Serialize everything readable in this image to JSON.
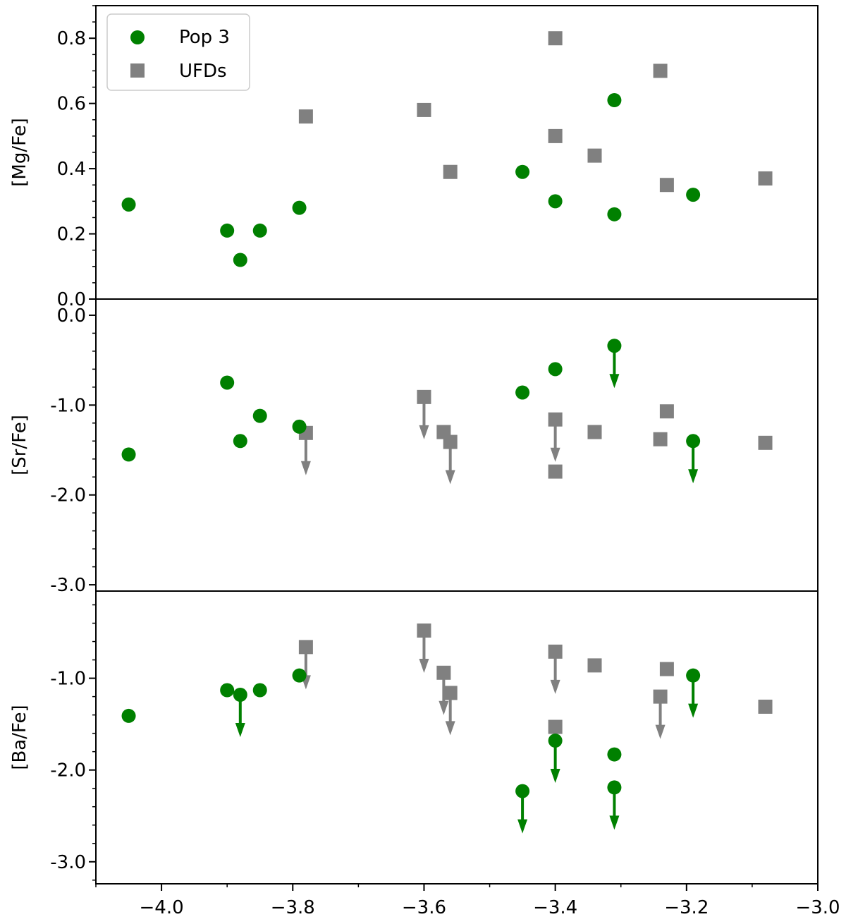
{
  "chart_data": {
    "type": "scatter",
    "layout": "three vertically stacked panels sharing x axis",
    "xlim": [
      -4.1,
      -3.0
    ],
    "x_ticks": [
      -4.0,
      -3.8,
      -3.6,
      -3.4,
      -3.2,
      -3.0
    ],
    "x_tick_labels": [
      "−4.0",
      "−3.8",
      "−3.6",
      "−3.4",
      "−3.2",
      "−3.0"
    ],
    "legend": {
      "placement": "top-left",
      "entries": [
        {
          "label": "Pop 3",
          "marker": "circle",
          "color": "#008000"
        },
        {
          "label": "UFDs",
          "marker": "square",
          "color": "#808080"
        }
      ]
    },
    "upper_limit_marker": "downward arrow",
    "panels": [
      {
        "ylabel": "[Mg/Fe]",
        "ylim": [
          0.0,
          0.9
        ],
        "y_ticks": [
          0.0,
          0.2,
          0.4,
          0.6,
          0.8
        ],
        "y_tick_labels": [
          "0.0",
          "0.2",
          "0.4",
          "0.6",
          "0.8"
        ],
        "series": [
          {
            "name": "Pop 3",
            "points": [
              {
                "x": -4.05,
                "y": 0.29
              },
              {
                "x": -3.9,
                "y": 0.21
              },
              {
                "x": -3.88,
                "y": 0.12
              },
              {
                "x": -3.85,
                "y": 0.21
              },
              {
                "x": -3.79,
                "y": 0.28
              },
              {
                "x": -3.45,
                "y": 0.39
              },
              {
                "x": -3.4,
                "y": 0.3
              },
              {
                "x": -3.31,
                "y": 0.61
              },
              {
                "x": -3.31,
                "y": 0.26
              },
              {
                "x": -3.19,
                "y": 0.32
              }
            ]
          },
          {
            "name": "UFDs",
            "points": [
              {
                "x": -3.78,
                "y": 0.56
              },
              {
                "x": -3.6,
                "y": 0.58
              },
              {
                "x": -3.56,
                "y": 0.39
              },
              {
                "x": -3.4,
                "y": 0.8
              },
              {
                "x": -3.4,
                "y": 0.5
              },
              {
                "x": -3.34,
                "y": 0.44
              },
              {
                "x": -3.24,
                "y": 0.7
              },
              {
                "x": -3.23,
                "y": 0.35
              },
              {
                "x": -3.08,
                "y": 0.37
              }
            ]
          }
        ]
      },
      {
        "ylabel": "[Sr/Fe]",
        "ylim": [
          -3.07,
          0.18
        ],
        "y_ticks": [
          0.0,
          -1.0,
          -2.0,
          -3.0
        ],
        "y_tick_labels": [
          "0.0",
          "-1.0",
          "-2.0",
          "-3.0"
        ],
        "series": [
          {
            "name": "Pop 3",
            "points": [
              {
                "x": -4.05,
                "y": -1.55
              },
              {
                "x": -3.9,
                "y": -0.75
              },
              {
                "x": -3.88,
                "y": -1.4
              },
              {
                "x": -3.85,
                "y": -1.12
              },
              {
                "x": -3.79,
                "y": -1.24
              },
              {
                "x": -3.45,
                "y": -0.86
              },
              {
                "x": -3.4,
                "y": -0.6
              },
              {
                "x": -3.31,
                "y": -0.34,
                "upper_limit": true
              },
              {
                "x": -3.19,
                "y": -1.4,
                "upper_limit": true
              }
            ]
          },
          {
            "name": "UFDs",
            "points": [
              {
                "x": -3.78,
                "y": -1.31,
                "upper_limit": true
              },
              {
                "x": -3.6,
                "y": -0.91,
                "upper_limit": true
              },
              {
                "x": -3.57,
                "y": -1.3
              },
              {
                "x": -3.56,
                "y": -1.41,
                "upper_limit": true
              },
              {
                "x": -3.4,
                "y": -1.16,
                "upper_limit": true
              },
              {
                "x": -3.4,
                "y": -1.74
              },
              {
                "x": -3.34,
                "y": -1.3
              },
              {
                "x": -3.24,
                "y": -1.38
              },
              {
                "x": -3.23,
                "y": -1.07
              },
              {
                "x": -3.08,
                "y": -1.42
              }
            ]
          }
        ]
      },
      {
        "ylabel": "[Ba/Fe]",
        "ylim": [
          -3.24,
          -0.05
        ],
        "y_ticks": [
          -1.0,
          -2.0,
          -3.0
        ],
        "y_tick_labels": [
          "-1.0",
          "-2.0",
          "-3.0"
        ],
        "series": [
          {
            "name": "Pop 3",
            "points": [
              {
                "x": -4.05,
                "y": -1.41
              },
              {
                "x": -3.9,
                "y": -1.13
              },
              {
                "x": -3.88,
                "y": -1.18,
                "upper_limit": true
              },
              {
                "x": -3.85,
                "y": -1.13
              },
              {
                "x": -3.79,
                "y": -0.97
              },
              {
                "x": -3.45,
                "y": -2.23,
                "upper_limit": true
              },
              {
                "x": -3.4,
                "y": -1.68,
                "upper_limit": true
              },
              {
                "x": -3.31,
                "y": -1.83
              },
              {
                "x": -3.31,
                "y": -2.19,
                "upper_limit": true
              },
              {
                "x": -3.19,
                "y": -0.97,
                "upper_limit": true
              }
            ]
          },
          {
            "name": "UFDs",
            "points": [
              {
                "x": -3.78,
                "y": -0.66,
                "upper_limit": true
              },
              {
                "x": -3.6,
                "y": -0.48,
                "upper_limit": true
              },
              {
                "x": -3.57,
                "y": -0.94,
                "upper_limit": true
              },
              {
                "x": -3.56,
                "y": -1.16,
                "upper_limit": true
              },
              {
                "x": -3.4,
                "y": -0.71,
                "upper_limit": true
              },
              {
                "x": -3.4,
                "y": -1.53
              },
              {
                "x": -3.34,
                "y": -0.86
              },
              {
                "x": -3.24,
                "y": -1.2,
                "upper_limit": true
              },
              {
                "x": -3.23,
                "y": -0.9
              },
              {
                "x": -3.08,
                "y": -1.31
              }
            ]
          }
        ]
      }
    ]
  }
}
